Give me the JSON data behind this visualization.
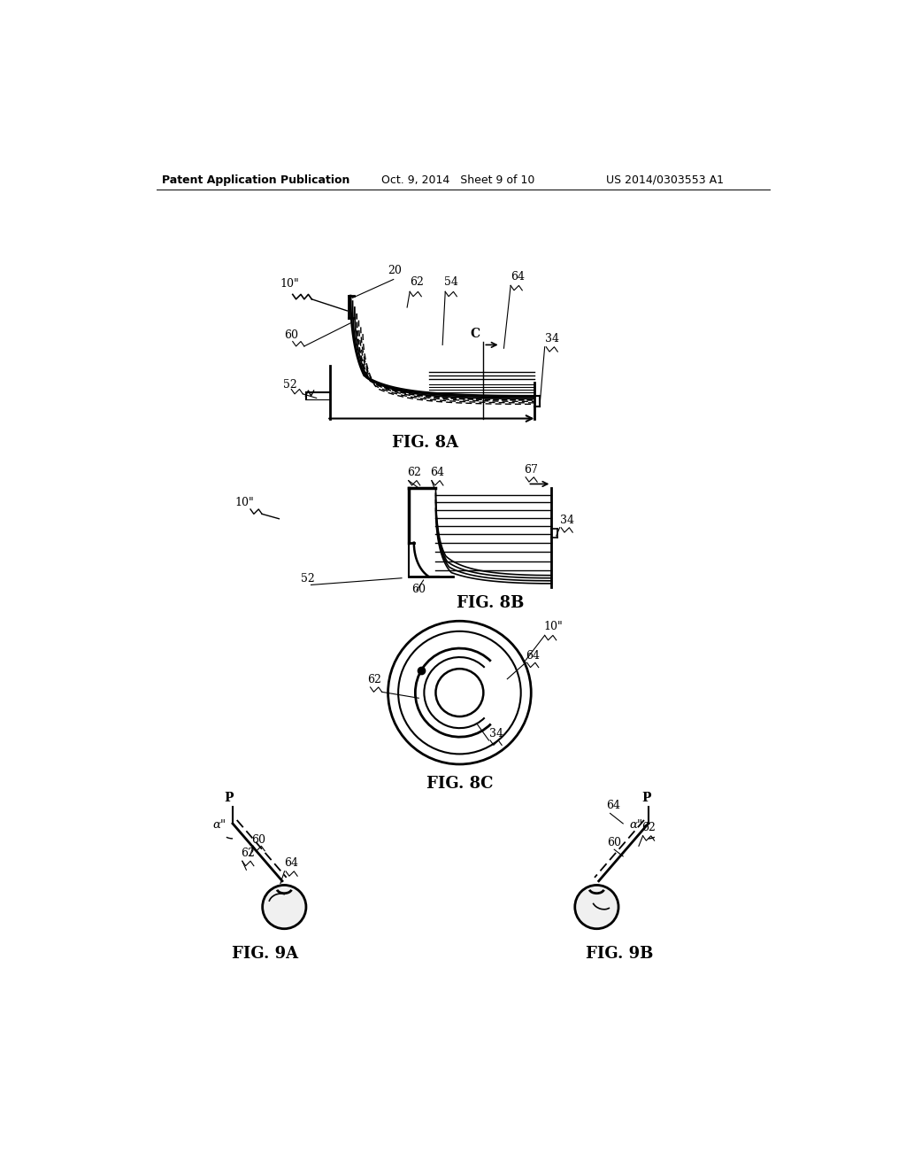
{
  "bg_color": "#ffffff",
  "header_left": "Patent Application Publication",
  "header_center": "Oct. 9, 2014   Sheet 9 of 10",
  "header_right": "US 2014/0303553 A1",
  "fig8a_label": "FIG. 8A",
  "fig8b_label": "FIG. 8B",
  "fig8c_label": "FIG. 8C",
  "fig9a_label": "FIG. 9A",
  "fig9b_label": "FIG. 9B",
  "line_color": "#000000",
  "text_color": "#000000"
}
